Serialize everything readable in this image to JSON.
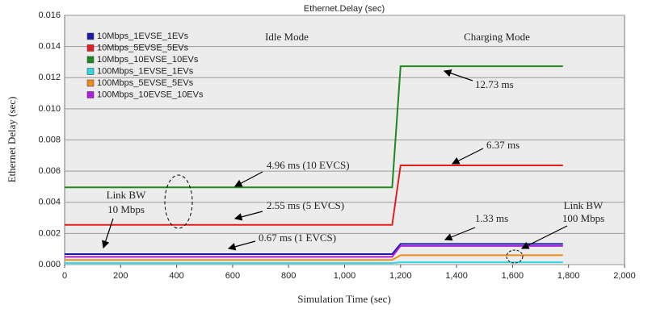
{
  "chart_data": {
    "type": "line",
    "title": "Ethernet.Delay (sec)",
    "x_label": "Simulation Time (sec)",
    "y_label": "Ethernet Delay (sec)",
    "x": [
      0,
      1170,
      1200,
      1780
    ],
    "series": [
      {
        "name": "10Mbps_1EVSE_1EVs",
        "color": "#1c1ca8",
        "values": [
          0.00067,
          0.00067,
          0.00133,
          0.00133
        ]
      },
      {
        "name": "10Mbps_5EVSE_5EVs",
        "color": "#e02020",
        "values": [
          0.00255,
          0.00255,
          0.00637,
          0.00637
        ]
      },
      {
        "name": "10Mbps_10EVSE_10EVs",
        "color": "#1e8a1e",
        "values": [
          0.00496,
          0.00496,
          0.01273,
          0.01273
        ]
      },
      {
        "name": "100Mbps_1EVSE_1EVs",
        "color": "#30d8e0",
        "values": [
          0.0001,
          0.0001,
          0.00015,
          0.00015
        ]
      },
      {
        "name": "100Mbps_5EVSE_5EVs",
        "color": "#f08c1c",
        "values": [
          0.0003,
          0.0003,
          0.0006,
          0.0006
        ]
      },
      {
        "name": "100Mbps_10EVSE_10EVs",
        "color": "#b01ce0",
        "values": [
          0.0005,
          0.0005,
          0.0012,
          0.0012
        ]
      }
    ],
    "xlim": [
      0,
      2000
    ],
    "xticks": [
      0,
      200,
      400,
      600,
      800,
      {
        "value": 1000,
        "label": "1,000"
      },
      {
        "value": 1200,
        "label": "1,200"
      },
      {
        "value": 1400,
        "label": "1,400"
      },
      {
        "value": 1600,
        "label": "1,600"
      },
      {
        "value": 1800,
        "label": "1,800"
      },
      {
        "value": 2000,
        "label": "2,000"
      }
    ],
    "ylim": [
      0,
      0.016
    ],
    "yticks": [
      {
        "value": 0,
        "label": "0.000"
      },
      {
        "value": 0.002,
        "label": "0.002"
      },
      {
        "value": 0.004,
        "label": "0.004"
      },
      {
        "value": 0.006,
        "label": "0.006"
      },
      {
        "value": 0.008,
        "label": "0.008"
      },
      {
        "value": 0.01,
        "label": "0.010"
      },
      {
        "value": 0.012,
        "label": "0.012"
      },
      {
        "value": 0.014,
        "label": "0.014"
      },
      {
        "value": 0.016,
        "label": "0.016"
      }
    ],
    "grid": true,
    "legend": "upper-left",
    "annotations": [
      "Idle Mode",
      "Charging Mode",
      "12.73 ms",
      "6.37 ms",
      "4.96 ms (10 EVCS)",
      "2.55 ms (5 EVCS)",
      "0.67 ms (1 EVCS)",
      "1.33 ms",
      "Link BW",
      "10 Mbps",
      "Link BW",
      "100 Mbps"
    ]
  }
}
